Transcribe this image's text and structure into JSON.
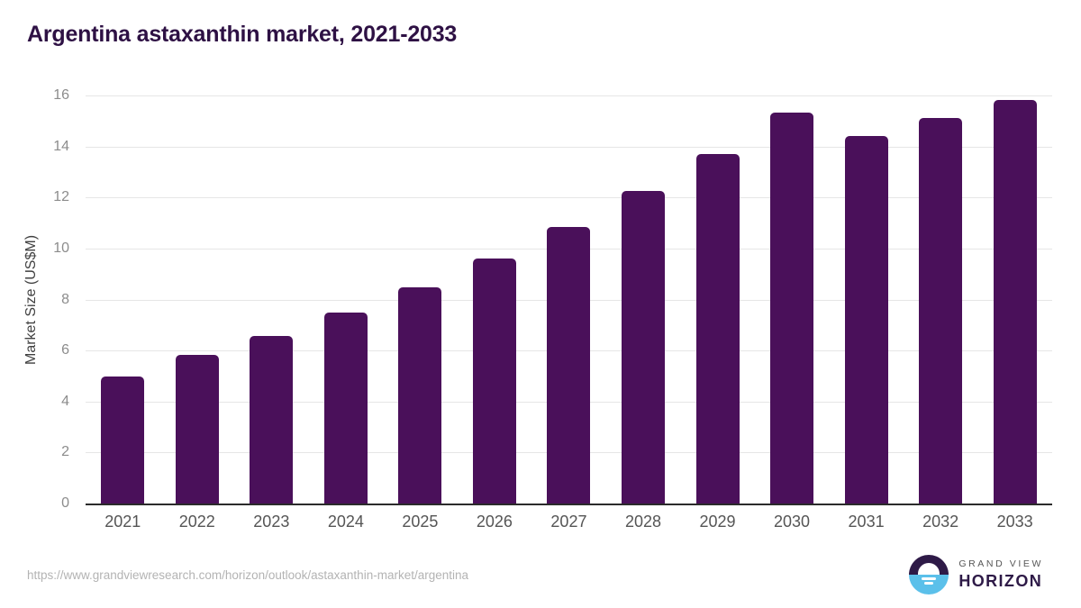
{
  "page": {
    "title": "Argentina astaxanthin market, 2021-2033",
    "source_url": "https://www.grandviewresearch.com/horizon/outlook/astaxanthin-market/argentina",
    "logo": {
      "line1": "GRAND VIEW",
      "line2": "HORIZON"
    }
  },
  "colors": {
    "bar": "#4a105a",
    "title": "#2e1144",
    "axis_line": "#2b2b2b",
    "gridline": "#e6e6e6",
    "y_tick_label": "#8c8c8c",
    "x_tick_label": "#555555",
    "source_url_text": "#b3b3b3",
    "logo_purple": "#2e1a47",
    "logo_blue": "#5bc0ea"
  },
  "chart_data": {
    "type": "bar",
    "title": "Argentina astaxanthin market, 2021-2033",
    "xlabel": "",
    "ylabel": "Market Size (US$M)",
    "categories": [
      "2021",
      "2022",
      "2023",
      "2024",
      "2025",
      "2026",
      "2027",
      "2028",
      "2029",
      "2030",
      "2031",
      "2032",
      "2033"
    ],
    "values": [
      4.97,
      5.83,
      6.57,
      7.48,
      8.48,
      9.62,
      10.84,
      12.25,
      13.71,
      15.34,
      14.42,
      15.13,
      15.84
    ],
    "ylim": [
      0,
      16
    ],
    "yticks": [
      0,
      2,
      4,
      6,
      8,
      10,
      12,
      14,
      16
    ],
    "grid": "horizontal",
    "legend": "none",
    "bar_color": "#4a105a"
  }
}
